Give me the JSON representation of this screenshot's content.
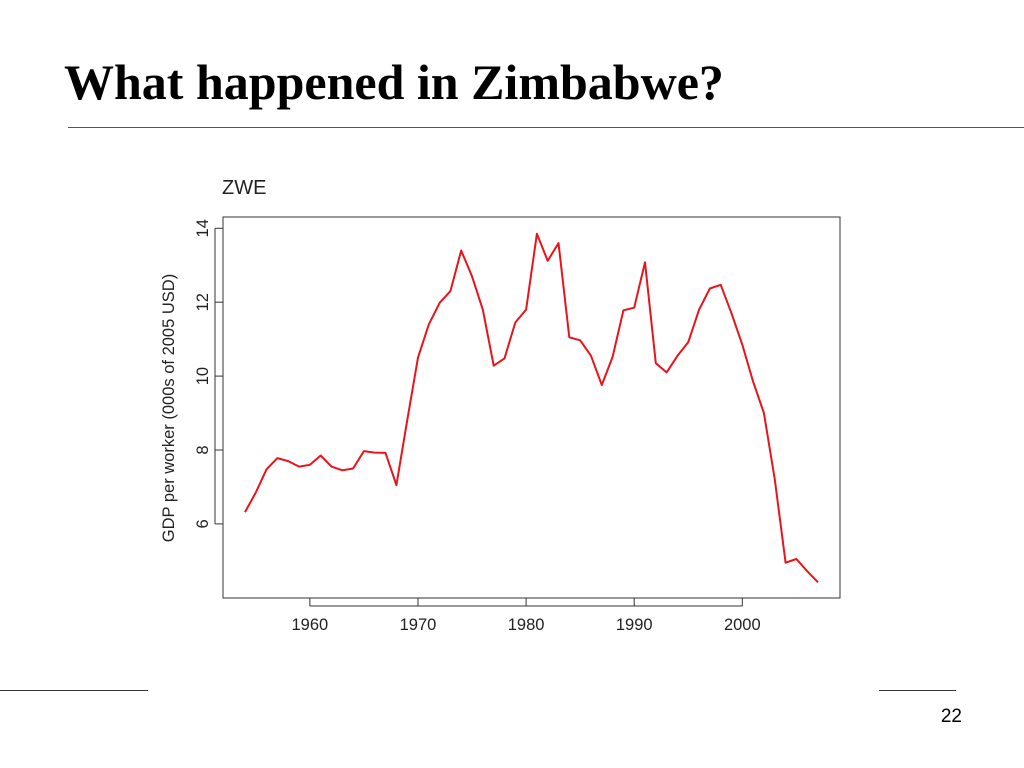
{
  "slide": {
    "title": "What happened in Zimbabwe?",
    "page_number": "22"
  },
  "colors": {
    "series_line": "#e8141b",
    "axis": "#333333",
    "text": "#222222"
  },
  "chart_data": {
    "type": "line",
    "title": "ZWE",
    "xlabel": "",
    "ylabel": "GDP per worker (000s of 2005 USD)",
    "xlim": [
      1954,
      2007
    ],
    "ylim": [
      4.4,
      13.9
    ],
    "xticks": [
      1960,
      1970,
      1980,
      1990,
      2000
    ],
    "yticks": [
      6,
      8,
      10,
      12,
      14
    ],
    "grid": false,
    "legend": "none",
    "series": [
      {
        "x": [
          1954,
          1955,
          1956,
          1957,
          1958,
          1959,
          1960,
          1961,
          1962,
          1963,
          1964,
          1965,
          1966,
          1967,
          1968,
          1969,
          1970,
          1971,
          1972,
          1973,
          1974,
          1975,
          1976,
          1977,
          1978,
          1979,
          1980,
          1981,
          1982,
          1983,
          1984,
          1985,
          1986,
          1987,
          1988,
          1989,
          1990,
          1991,
          1992,
          1993,
          1994,
          1995,
          1996,
          1997,
          1998,
          1999,
          2000,
          2001,
          2002,
          2003,
          2004,
          2005,
          2006,
          2007
        ],
        "y": [
          6.32,
          6.85,
          7.48,
          7.78,
          7.7,
          7.55,
          7.6,
          7.85,
          7.55,
          7.45,
          7.5,
          7.97,
          7.93,
          7.92,
          7.05,
          8.8,
          10.5,
          11.4,
          11.98,
          12.3,
          13.4,
          12.7,
          11.8,
          10.28,
          10.48,
          11.45,
          11.8,
          13.85,
          13.12,
          13.6,
          11.05,
          10.97,
          10.55,
          9.76,
          10.52,
          11.78,
          11.85,
          13.08,
          10.35,
          10.1,
          10.55,
          10.92,
          11.8,
          12.37,
          12.47,
          11.7,
          10.85,
          9.85,
          9.0,
          7.2,
          4.95,
          5.05,
          4.72,
          4.42
        ]
      }
    ]
  }
}
